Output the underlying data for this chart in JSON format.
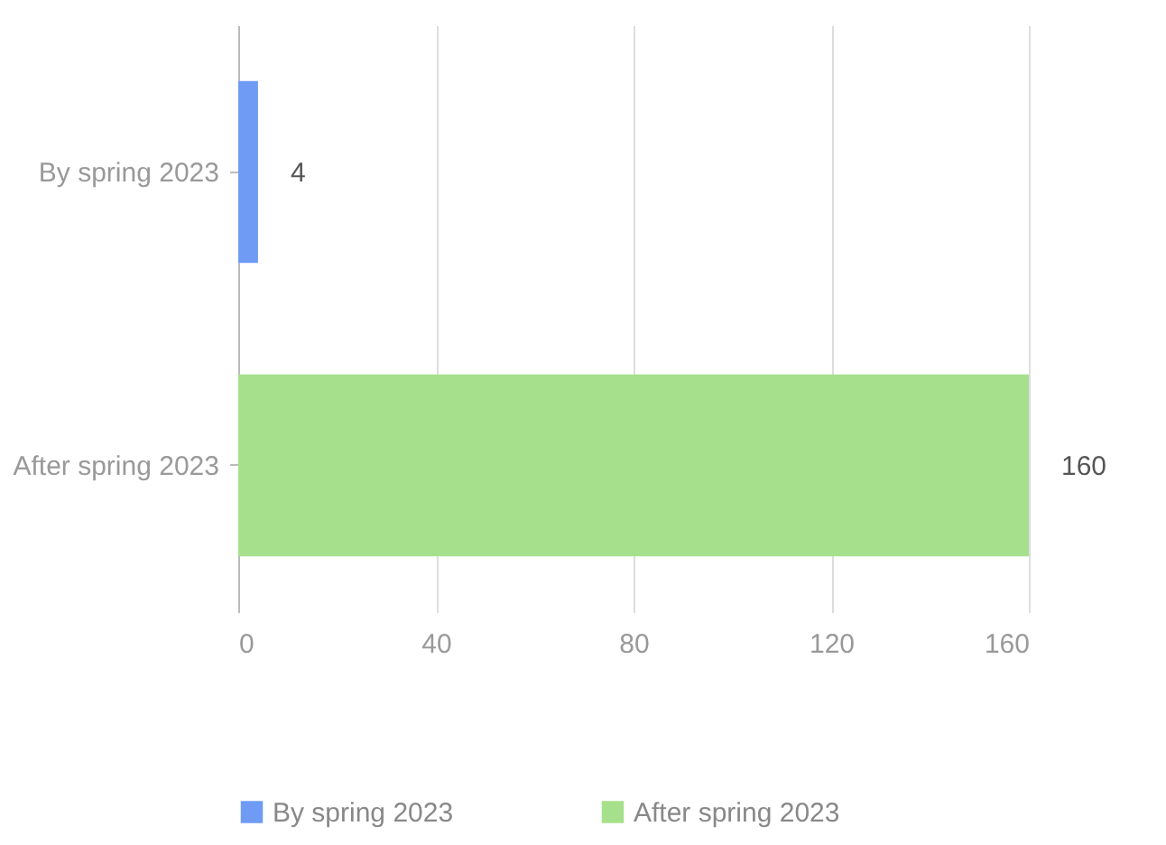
{
  "chart_data": {
    "type": "bar",
    "orientation": "horizontal",
    "categories": [
      "By spring 2023",
      "After spring 2023"
    ],
    "series": [
      {
        "name": "By spring 2023",
        "color": "#6f9bf5",
        "values": [
          4,
          null
        ]
      },
      {
        "name": "After spring 2023",
        "color": "#a7e08c",
        "values": [
          null,
          160
        ]
      }
    ],
    "xlim": [
      0,
      160
    ],
    "xticks": [
      0,
      40,
      80,
      120,
      160
    ],
    "grid": "x",
    "legend": "bottom",
    "data_labels": true
  }
}
